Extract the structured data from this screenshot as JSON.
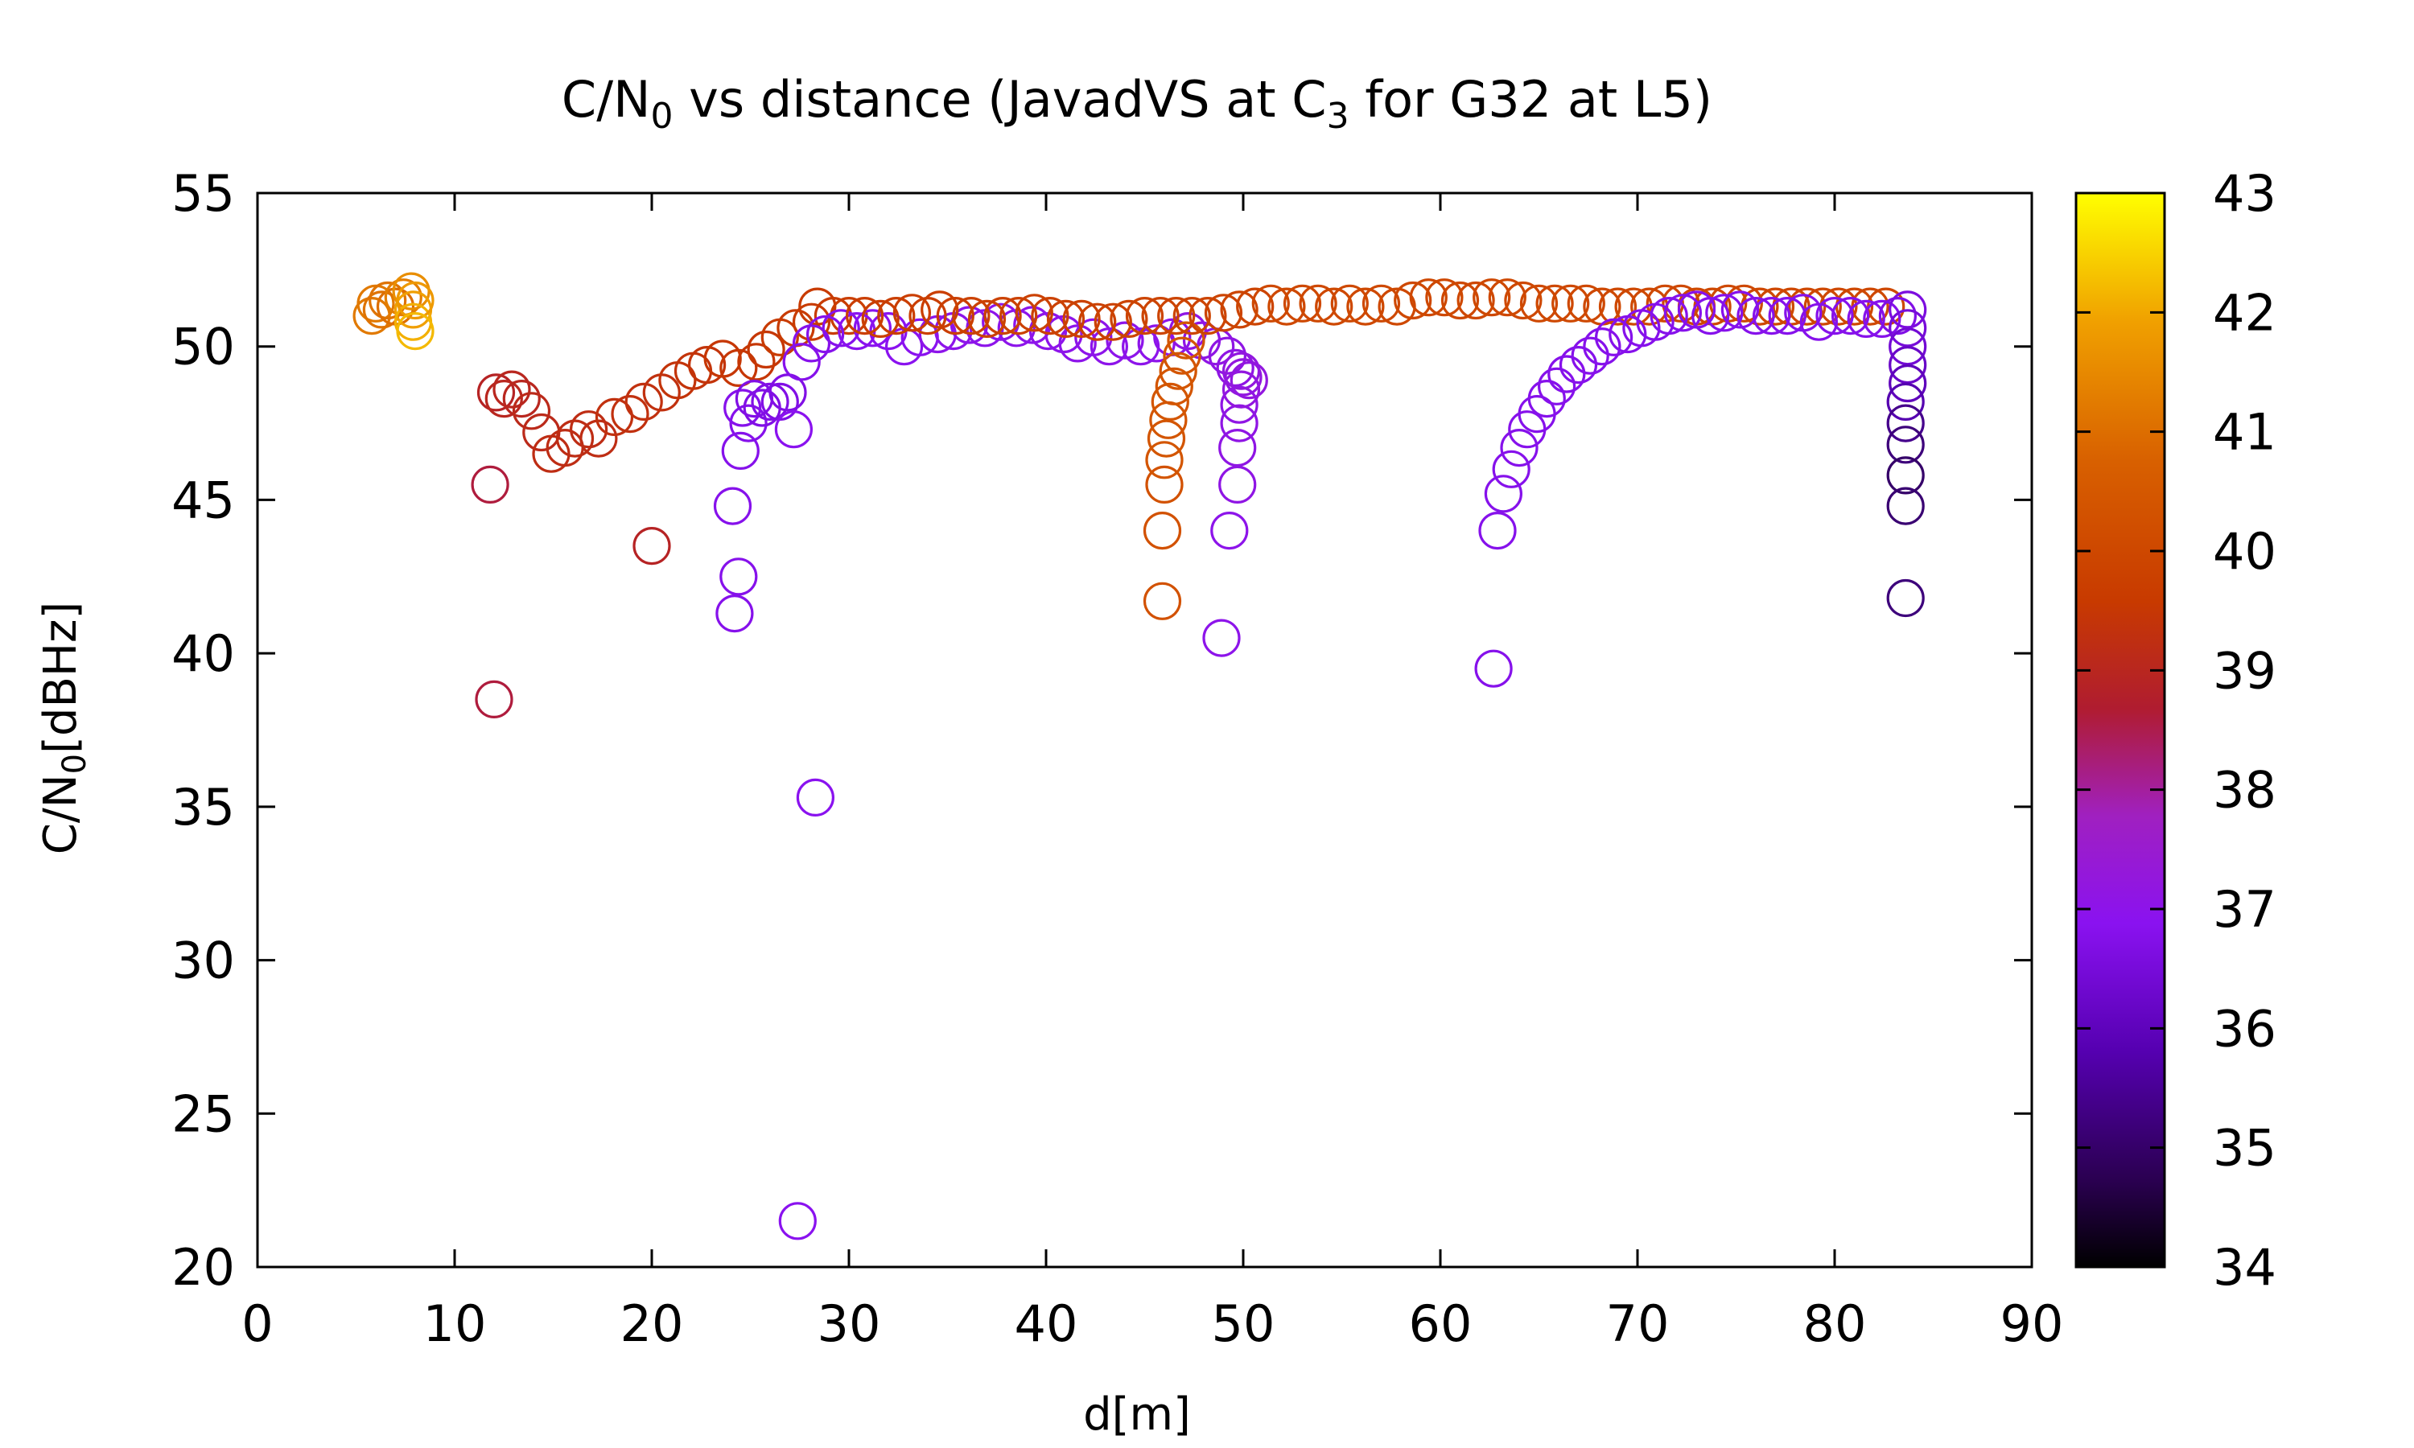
{
  "chart_data": {
    "type": "scatter",
    "title": {
      "main": "C/N",
      "sub1": "0",
      "mid": " vs distance (JavadVS at C",
      "sub2": "3",
      "tail": " for G32 at L5)"
    },
    "xlabel": "d[m]",
    "ylabel": {
      "main": "C/N",
      "sub": "0",
      "tail": "[dBHz]"
    },
    "xlim": [
      0,
      90
    ],
    "ylim": [
      20,
      55
    ],
    "xticks": [
      "0",
      "10",
      "20",
      "30",
      "40",
      "50",
      "60",
      "70",
      "80",
      "90"
    ],
    "yticks": [
      "20",
      "25",
      "30",
      "35",
      "40",
      "45",
      "50",
      "55"
    ],
    "grid": false,
    "marker": "open circle",
    "colorbar": {
      "range": [
        34,
        43
      ],
      "ticks": [
        "34",
        "35",
        "36",
        "37",
        "38",
        "39",
        "40",
        "41",
        "42",
        "43"
      ],
      "colormap": "black-purple-red-orange-yellow"
    },
    "points": [
      {
        "x": 5.8,
        "y": 51.0,
        "c": 41.2
      },
      {
        "x": 6.0,
        "y": 51.4,
        "c": 41.2
      },
      {
        "x": 6.3,
        "y": 51.2,
        "c": 41.1
      },
      {
        "x": 6.6,
        "y": 51.5,
        "c": 41.1
      },
      {
        "x": 7.0,
        "y": 51.3,
        "c": 41.0
      },
      {
        "x": 7.4,
        "y": 51.6,
        "c": 41.3
      },
      {
        "x": 7.8,
        "y": 51.8,
        "c": 41.6
      },
      {
        "x": 7.9,
        "y": 51.2,
        "c": 41.9
      },
      {
        "x": 7.9,
        "y": 50.8,
        "c": 42.1
      },
      {
        "x": 8.0,
        "y": 51.5,
        "c": 41.8
      },
      {
        "x": 8.0,
        "y": 50.5,
        "c": 42.2
      },
      {
        "x": 11.8,
        "y": 45.5,
        "c": 38.6
      },
      {
        "x": 12.0,
        "y": 38.5,
        "c": 38.6
      },
      {
        "x": 12.1,
        "y": 48.5,
        "c": 38.9
      },
      {
        "x": 12.5,
        "y": 48.3,
        "c": 39.0
      },
      {
        "x": 12.9,
        "y": 48.6,
        "c": 39.0
      },
      {
        "x": 13.4,
        "y": 48.3,
        "c": 39.0
      },
      {
        "x": 13.9,
        "y": 47.9,
        "c": 39.1
      },
      {
        "x": 14.4,
        "y": 47.2,
        "c": 39.1
      },
      {
        "x": 14.9,
        "y": 46.5,
        "c": 39.2
      },
      {
        "x": 15.6,
        "y": 46.7,
        "c": 39.2
      },
      {
        "x": 16.1,
        "y": 47.0,
        "c": 39.2
      },
      {
        "x": 16.8,
        "y": 47.3,
        "c": 39.2
      },
      {
        "x": 17.3,
        "y": 47.0,
        "c": 39.2
      },
      {
        "x": 18.1,
        "y": 47.7,
        "c": 39.3
      },
      {
        "x": 18.9,
        "y": 47.8,
        "c": 39.3
      },
      {
        "x": 19.6,
        "y": 48.2,
        "c": 39.3
      },
      {
        "x": 20.0,
        "y": 43.5,
        "c": 38.9
      },
      {
        "x": 20.5,
        "y": 48.5,
        "c": 39.3
      },
      {
        "x": 21.3,
        "y": 48.9,
        "c": 39.4
      },
      {
        "x": 22.1,
        "y": 49.2,
        "c": 39.4
      },
      {
        "x": 22.8,
        "y": 49.4,
        "c": 39.4
      },
      {
        "x": 23.6,
        "y": 49.6,
        "c": 39.5
      },
      {
        "x": 24.4,
        "y": 49.3,
        "c": 39.5
      },
      {
        "x": 25.3,
        "y": 49.5,
        "c": 39.5
      },
      {
        "x": 25.8,
        "y": 49.9,
        "c": 39.5
      },
      {
        "x": 26.5,
        "y": 50.3,
        "c": 39.6
      },
      {
        "x": 27.3,
        "y": 50.6,
        "c": 39.6
      },
      {
        "x": 28.1,
        "y": 50.8,
        "c": 39.6
      },
      {
        "x": 28.4,
        "y": 51.3,
        "c": 39.6
      },
      {
        "x": 29.2,
        "y": 51.0,
        "c": 39.6
      },
      {
        "x": 30.0,
        "y": 51.0,
        "c": 39.7
      },
      {
        "x": 24.1,
        "y": 44.8,
        "c": 36.8
      },
      {
        "x": 24.2,
        "y": 41.3,
        "c": 36.8
      },
      {
        "x": 24.4,
        "y": 42.5,
        "c": 36.8
      },
      {
        "x": 24.5,
        "y": 46.6,
        "c": 36.8
      },
      {
        "x": 24.6,
        "y": 48.0,
        "c": 36.8
      },
      {
        "x": 24.9,
        "y": 47.5,
        "c": 36.8
      },
      {
        "x": 25.2,
        "y": 48.3,
        "c": 36.7
      },
      {
        "x": 25.6,
        "y": 48.0,
        "c": 36.7
      },
      {
        "x": 26.0,
        "y": 48.2,
        "c": 36.7
      },
      {
        "x": 26.5,
        "y": 48.2,
        "c": 36.7
      },
      {
        "x": 26.9,
        "y": 48.5,
        "c": 36.7
      },
      {
        "x": 27.2,
        "y": 47.3,
        "c": 36.9
      },
      {
        "x": 27.4,
        "y": 21.5,
        "c": 36.9
      },
      {
        "x": 27.6,
        "y": 49.5,
        "c": 36.8
      },
      {
        "x": 28.1,
        "y": 50.1,
        "c": 36.8
      },
      {
        "x": 28.3,
        "y": 35.3,
        "c": 36.9
      },
      {
        "x": 28.8,
        "y": 50.4,
        "c": 36.8
      },
      {
        "x": 29.6,
        "y": 50.6,
        "c": 36.8
      },
      {
        "x": 30.4,
        "y": 50.5,
        "c": 36.9
      },
      {
        "x": 31.2,
        "y": 50.6,
        "c": 36.9
      },
      {
        "x": 32.0,
        "y": 50.5,
        "c": 36.9
      },
      {
        "x": 32.8,
        "y": 50.0,
        "c": 36.9
      },
      {
        "x": 33.6,
        "y": 50.3,
        "c": 36.9
      },
      {
        "x": 34.5,
        "y": 50.4,
        "c": 37.0
      },
      {
        "x": 35.3,
        "y": 50.5,
        "c": 37.0
      },
      {
        "x": 36.1,
        "y": 50.7,
        "c": 37.0
      },
      {
        "x": 36.9,
        "y": 50.6,
        "c": 37.0
      },
      {
        "x": 37.7,
        "y": 50.8,
        "c": 37.0
      },
      {
        "x": 38.5,
        "y": 50.6,
        "c": 37.0
      },
      {
        "x": 39.3,
        "y": 50.7,
        "c": 37.0
      },
      {
        "x": 40.1,
        "y": 50.5,
        "c": 37.0
      },
      {
        "x": 40.9,
        "y": 50.4,
        "c": 37.0
      },
      {
        "x": 41.6,
        "y": 50.1,
        "c": 37.0
      },
      {
        "x": 42.4,
        "y": 50.3,
        "c": 37.0
      },
      {
        "x": 43.2,
        "y": 50.0,
        "c": 37.0
      },
      {
        "x": 44.0,
        "y": 50.2,
        "c": 37.0
      },
      {
        "x": 44.8,
        "y": 50.0,
        "c": 37.0
      },
      {
        "x": 45.6,
        "y": 50.1,
        "c": 37.0
      },
      {
        "x": 46.4,
        "y": 50.3,
        "c": 37.0
      },
      {
        "x": 47.2,
        "y": 50.5,
        "c": 37.1
      },
      {
        "x": 47.9,
        "y": 50.2,
        "c": 37.1
      },
      {
        "x": 48.6,
        "y": 50.0,
        "c": 37.1
      },
      {
        "x": 49.2,
        "y": 49.7,
        "c": 37.1
      },
      {
        "x": 49.6,
        "y": 49.3,
        "c": 37.1
      },
      {
        "x": 50.0,
        "y": 49.0,
        "c": 37.2
      },
      {
        "x": 50.3,
        "y": 48.9,
        "c": 37.2
      },
      {
        "x": 49.3,
        "y": 44.0,
        "c": 37.0
      },
      {
        "x": 48.9,
        "y": 40.5,
        "c": 37.0
      },
      {
        "x": 49.7,
        "y": 45.5,
        "c": 37.1
      },
      {
        "x": 49.7,
        "y": 46.7,
        "c": 37.1
      },
      {
        "x": 49.8,
        "y": 47.5,
        "c": 37.1
      },
      {
        "x": 49.8,
        "y": 48.1,
        "c": 37.1
      },
      {
        "x": 49.9,
        "y": 48.6,
        "c": 37.2
      },
      {
        "x": 49.9,
        "y": 49.2,
        "c": 37.2
      },
      {
        "x": 45.9,
        "y": 41.7,
        "c": 40.3
      },
      {
        "x": 45.9,
        "y": 44.0,
        "c": 40.3
      },
      {
        "x": 46.0,
        "y": 45.5,
        "c": 40.3
      },
      {
        "x": 46.0,
        "y": 46.3,
        "c": 40.4
      },
      {
        "x": 46.1,
        "y": 47.0,
        "c": 40.4
      },
      {
        "x": 46.2,
        "y": 47.6,
        "c": 40.4
      },
      {
        "x": 46.3,
        "y": 48.2,
        "c": 40.4
      },
      {
        "x": 46.5,
        "y": 48.7,
        "c": 40.4
      },
      {
        "x": 46.7,
        "y": 49.2,
        "c": 40.4
      },
      {
        "x": 46.9,
        "y": 49.7,
        "c": 40.4
      },
      {
        "x": 47.1,
        "y": 50.2,
        "c": 40.4
      },
      {
        "x": 30.8,
        "y": 51.0,
        "c": 39.7
      },
      {
        "x": 31.6,
        "y": 50.9,
        "c": 39.7
      },
      {
        "x": 32.4,
        "y": 51.0,
        "c": 39.7
      },
      {
        "x": 33.2,
        "y": 51.1,
        "c": 39.7
      },
      {
        "x": 34.0,
        "y": 51.0,
        "c": 39.7
      },
      {
        "x": 34.6,
        "y": 51.2,
        "c": 39.7
      },
      {
        "x": 35.4,
        "y": 51.0,
        "c": 39.7
      },
      {
        "x": 36.2,
        "y": 51.0,
        "c": 39.8
      },
      {
        "x": 37.0,
        "y": 50.9,
        "c": 39.8
      },
      {
        "x": 37.8,
        "y": 51.0,
        "c": 39.8
      },
      {
        "x": 38.6,
        "y": 51.0,
        "c": 39.8
      },
      {
        "x": 39.4,
        "y": 51.1,
        "c": 39.8
      },
      {
        "x": 40.2,
        "y": 51.0,
        "c": 39.8
      },
      {
        "x": 41.0,
        "y": 50.9,
        "c": 39.8
      },
      {
        "x": 41.8,
        "y": 50.9,
        "c": 39.8
      },
      {
        "x": 42.6,
        "y": 50.8,
        "c": 39.8
      },
      {
        "x": 43.4,
        "y": 50.8,
        "c": 39.8
      },
      {
        "x": 44.2,
        "y": 50.9,
        "c": 39.9
      },
      {
        "x": 45.0,
        "y": 51.0,
        "c": 39.9
      },
      {
        "x": 45.8,
        "y": 51.0,
        "c": 39.9
      },
      {
        "x": 46.6,
        "y": 51.0,
        "c": 39.9
      },
      {
        "x": 47.4,
        "y": 51.0,
        "c": 39.9
      },
      {
        "x": 48.2,
        "y": 51.0,
        "c": 39.9
      },
      {
        "x": 49.0,
        "y": 51.1,
        "c": 39.9
      },
      {
        "x": 49.8,
        "y": 51.2,
        "c": 39.9
      },
      {
        "x": 50.6,
        "y": 51.3,
        "c": 39.9
      },
      {
        "x": 51.4,
        "y": 51.4,
        "c": 40.0
      },
      {
        "x": 52.2,
        "y": 51.3,
        "c": 40.0
      },
      {
        "x": 53.0,
        "y": 51.4,
        "c": 40.0
      },
      {
        "x": 53.8,
        "y": 51.4,
        "c": 40.0
      },
      {
        "x": 54.6,
        "y": 51.3,
        "c": 40.0
      },
      {
        "x": 55.4,
        "y": 51.4,
        "c": 40.0
      },
      {
        "x": 56.2,
        "y": 51.3,
        "c": 40.0
      },
      {
        "x": 57.0,
        "y": 51.4,
        "c": 40.0
      },
      {
        "x": 57.8,
        "y": 51.3,
        "c": 40.0
      },
      {
        "x": 58.6,
        "y": 51.5,
        "c": 40.0
      },
      {
        "x": 59.4,
        "y": 51.6,
        "c": 40.0
      },
      {
        "x": 60.2,
        "y": 51.6,
        "c": 40.0
      },
      {
        "x": 61.0,
        "y": 51.5,
        "c": 40.0
      },
      {
        "x": 61.8,
        "y": 51.5,
        "c": 40.0
      },
      {
        "x": 62.6,
        "y": 51.6,
        "c": 40.0
      },
      {
        "x": 63.4,
        "y": 51.6,
        "c": 40.0
      },
      {
        "x": 64.2,
        "y": 51.5,
        "c": 40.0
      },
      {
        "x": 65.0,
        "y": 51.4,
        "c": 40.0
      },
      {
        "x": 65.8,
        "y": 51.4,
        "c": 40.0
      },
      {
        "x": 66.6,
        "y": 51.4,
        "c": 40.0
      },
      {
        "x": 67.4,
        "y": 51.4,
        "c": 40.0
      },
      {
        "x": 68.2,
        "y": 51.3,
        "c": 40.0
      },
      {
        "x": 69.0,
        "y": 51.3,
        "c": 40.0
      },
      {
        "x": 69.8,
        "y": 51.3,
        "c": 40.0
      },
      {
        "x": 70.6,
        "y": 51.3,
        "c": 40.0
      },
      {
        "x": 71.4,
        "y": 51.4,
        "c": 40.0
      },
      {
        "x": 72.2,
        "y": 51.4,
        "c": 40.0
      },
      {
        "x": 73.0,
        "y": 51.3,
        "c": 40.0
      },
      {
        "x": 73.8,
        "y": 51.3,
        "c": 40.0
      },
      {
        "x": 74.6,
        "y": 51.4,
        "c": 40.0
      },
      {
        "x": 75.4,
        "y": 51.4,
        "c": 40.0
      },
      {
        "x": 76.2,
        "y": 51.3,
        "c": 40.0
      },
      {
        "x": 77.0,
        "y": 51.3,
        "c": 40.0
      },
      {
        "x": 77.8,
        "y": 51.3,
        "c": 40.0
      },
      {
        "x": 78.6,
        "y": 51.3,
        "c": 40.0
      },
      {
        "x": 79.4,
        "y": 51.3,
        "c": 40.0
      },
      {
        "x": 80.2,
        "y": 51.3,
        "c": 40.0
      },
      {
        "x": 81.0,
        "y": 51.3,
        "c": 40.0
      },
      {
        "x": 81.8,
        "y": 51.3,
        "c": 40.0
      },
      {
        "x": 82.6,
        "y": 51.3,
        "c": 40.0
      },
      {
        "x": 62.7,
        "y": 39.5,
        "c": 36.8
      },
      {
        "x": 62.9,
        "y": 44.0,
        "c": 36.8
      },
      {
        "x": 63.2,
        "y": 45.2,
        "c": 36.8
      },
      {
        "x": 63.6,
        "y": 46.0,
        "c": 36.8
      },
      {
        "x": 64.0,
        "y": 46.7,
        "c": 36.8
      },
      {
        "x": 64.4,
        "y": 47.3,
        "c": 36.8
      },
      {
        "x": 64.9,
        "y": 47.8,
        "c": 36.8
      },
      {
        "x": 65.4,
        "y": 48.3,
        "c": 36.8
      },
      {
        "x": 65.9,
        "y": 48.7,
        "c": 36.8
      },
      {
        "x": 66.4,
        "y": 49.1,
        "c": 36.8
      },
      {
        "x": 67.0,
        "y": 49.4,
        "c": 36.8
      },
      {
        "x": 67.6,
        "y": 49.7,
        "c": 36.8
      },
      {
        "x": 68.2,
        "y": 50.0,
        "c": 36.8
      },
      {
        "x": 68.8,
        "y": 50.3,
        "c": 36.8
      },
      {
        "x": 69.5,
        "y": 50.4,
        "c": 36.8
      },
      {
        "x": 70.2,
        "y": 50.6,
        "c": 36.8
      },
      {
        "x": 70.9,
        "y": 50.8,
        "c": 36.8
      },
      {
        "x": 71.6,
        "y": 51.0,
        "c": 36.8
      },
      {
        "x": 72.3,
        "y": 51.1,
        "c": 36.8
      },
      {
        "x": 73.0,
        "y": 51.2,
        "c": 36.8
      },
      {
        "x": 73.7,
        "y": 51.0,
        "c": 36.8
      },
      {
        "x": 74.4,
        "y": 51.1,
        "c": 36.8
      },
      {
        "x": 75.2,
        "y": 51.2,
        "c": 36.8
      },
      {
        "x": 76.0,
        "y": 51.0,
        "c": 36.8
      },
      {
        "x": 76.8,
        "y": 51.0,
        "c": 36.8
      },
      {
        "x": 77.6,
        "y": 51.0,
        "c": 36.8
      },
      {
        "x": 78.4,
        "y": 51.1,
        "c": 36.8
      },
      {
        "x": 79.2,
        "y": 50.8,
        "c": 36.8
      },
      {
        "x": 80.0,
        "y": 51.0,
        "c": 36.8
      },
      {
        "x": 80.8,
        "y": 51.0,
        "c": 36.8
      },
      {
        "x": 81.6,
        "y": 50.9,
        "c": 36.8
      },
      {
        "x": 82.4,
        "y": 50.9,
        "c": 36.8
      },
      {
        "x": 83.2,
        "y": 51.0,
        "c": 36.7
      },
      {
        "x": 83.7,
        "y": 51.2,
        "c": 36.6
      },
      {
        "x": 83.7,
        "y": 50.6,
        "c": 36.5
      },
      {
        "x": 83.7,
        "y": 50.0,
        "c": 36.4
      },
      {
        "x": 83.7,
        "y": 49.4,
        "c": 36.2
      },
      {
        "x": 83.7,
        "y": 48.8,
        "c": 36.0
      },
      {
        "x": 83.6,
        "y": 48.2,
        "c": 35.8
      },
      {
        "x": 83.6,
        "y": 47.5,
        "c": 35.4
      },
      {
        "x": 83.6,
        "y": 46.8,
        "c": 35.2
      },
      {
        "x": 83.6,
        "y": 45.8,
        "c": 35.0
      },
      {
        "x": 83.6,
        "y": 44.8,
        "c": 35.1
      },
      {
        "x": 83.6,
        "y": 41.8,
        "c": 35.2
      }
    ]
  }
}
